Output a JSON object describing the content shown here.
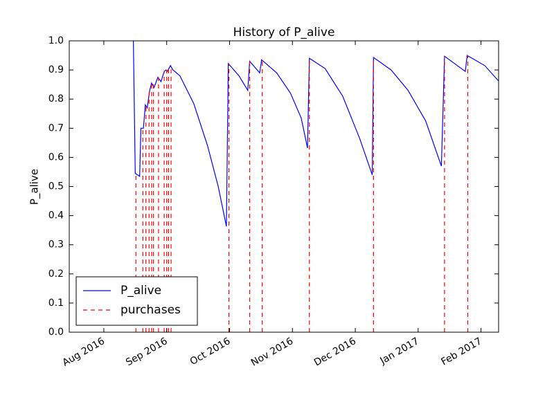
{
  "chart_data": {
    "type": "line",
    "title": "History of P_alive",
    "ylabel": "P_alive",
    "xlim": [
      -0.55,
      6.28
    ],
    "xticks": [
      {
        "value": 0,
        "label": "Aug 2016"
      },
      {
        "value": 1,
        "label": "Sep 2016"
      },
      {
        "value": 2,
        "label": "Oct 2016"
      },
      {
        "value": 3,
        "label": "Nov 2016"
      },
      {
        "value": 4,
        "label": "Dec 2016"
      },
      {
        "value": 5,
        "label": "Jan 2017"
      },
      {
        "value": 6,
        "label": "Feb 2017"
      }
    ],
    "ylim": [
      0,
      1
    ],
    "yticks": [
      {
        "value": 0,
        "label": "0.0"
      },
      0.1,
      0.2,
      0.3,
      0.4,
      0.5,
      0.6,
      0.7,
      0.8,
      0.9,
      {
        "value": 1,
        "label": "1.0"
      }
    ],
    "grid": false,
    "legend": "lower left",
    "series": [
      {
        "name": "P_alive",
        "color": "#0000ff",
        "kind": "line",
        "dash": "solid",
        "x": [
          0.47,
          0.5,
          0.57,
          0.59,
          0.63,
          0.66,
          0.69,
          0.73,
          0.76,
          0.8,
          0.86,
          0.91,
          0.96,
          0.99,
          1.01,
          1.06,
          1.1,
          1.21,
          1.43,
          1.65,
          1.82,
          1.95,
          1.98,
          2.15,
          2.29,
          2.32,
          2.48,
          2.51,
          2.75,
          2.97,
          3.14,
          3.24,
          3.27,
          3.52,
          3.8,
          4.07,
          4.27,
          4.29,
          4.57,
          4.84,
          5.12,
          5.37,
          5.42,
          5.75,
          5.78,
          6.06,
          6.28
        ],
        "values": [
          1.0,
          0.545,
          0.535,
          0.7,
          0.7,
          0.78,
          0.77,
          0.83,
          0.855,
          0.84,
          0.875,
          0.86,
          0.895,
          0.9,
          0.895,
          0.915,
          0.9,
          0.88,
          0.785,
          0.64,
          0.5,
          0.363,
          0.922,
          0.88,
          0.83,
          0.93,
          0.89,
          0.935,
          0.89,
          0.82,
          0.735,
          0.632,
          0.94,
          0.905,
          0.81,
          0.665,
          0.54,
          0.943,
          0.9,
          0.83,
          0.725,
          0.57,
          0.947,
          0.895,
          0.95,
          0.915,
          0.862
        ]
      },
      {
        "name": "purchases",
        "color": "#ff0000",
        "kind": "vlines",
        "dash": "dashed",
        "x": [
          0.51,
          0.62,
          0.67,
          0.72,
          0.76,
          0.79,
          0.87,
          0.96,
          1.0,
          1.03,
          1.07,
          1.99,
          2.32,
          2.52,
          3.27,
          4.29,
          5.42,
          5.79
        ],
        "values": [
          0.545,
          0.7,
          0.78,
          0.83,
          0.855,
          0.86,
          0.875,
          0.895,
          0.9,
          0.905,
          0.915,
          0.922,
          0.93,
          0.935,
          0.94,
          0.943,
          0.947,
          0.95
        ]
      }
    ]
  }
}
